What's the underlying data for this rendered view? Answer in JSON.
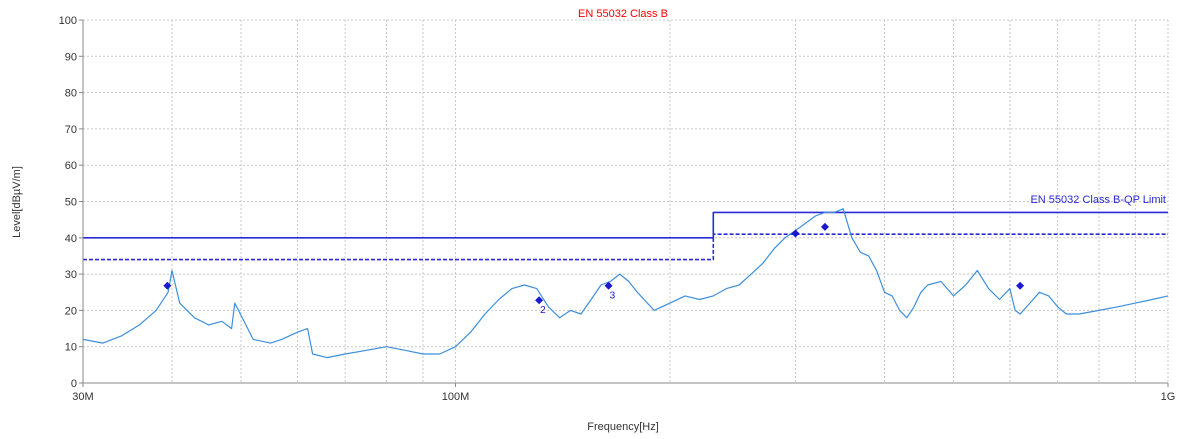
{
  "chart_data": {
    "type": "line",
    "title": "EN 55032 Class B",
    "xlabel": "Frequency[Hz]",
    "ylabel": "Level[dBµV/m]",
    "x_scale": "log",
    "xlim": [
      30000000,
      1000000000
    ],
    "ylim": [
      0,
      100
    ],
    "y_ticks": [
      0,
      10,
      20,
      30,
      40,
      50,
      60,
      70,
      80,
      90,
      100
    ],
    "y_tick_labels": [
      "0",
      "10",
      "20",
      "30",
      "40",
      "50",
      "60",
      "70",
      "80",
      "90",
      "100"
    ],
    "x_tick_labels": [
      {
        "value": 30000000,
        "label": "30M"
      },
      {
        "value": 100000000,
        "label": "100M"
      },
      {
        "value": 1000000000,
        "label": "1G"
      }
    ],
    "x_minor_grid": [
      40000000,
      50000000,
      60000000,
      70000000,
      80000000,
      90000000,
      200000000,
      300000000,
      400000000,
      500000000,
      600000000,
      700000000,
      800000000,
      900000000
    ],
    "grid": true,
    "legend": [
      {
        "label": "EN 55032 Class B-QP Limit",
        "color": "#2a2ad8"
      }
    ],
    "series": [
      {
        "kind": "limit",
        "color": "#2a2ad8",
        "style": "solid",
        "x": [
          30000000,
          230000000,
          230000000,
          1000000000
        ],
        "values": [
          40,
          40,
          47,
          47
        ]
      },
      {
        "kind": "limit",
        "color": "#2a2ad8",
        "style": "dashed",
        "x": [
          30000000,
          230000000,
          230000000,
          1000000000
        ],
        "values": [
          34,
          34,
          41,
          41
        ]
      },
      {
        "kind": "measurement",
        "color": "#3d8fdc",
        "x": [
          30000000,
          32000000,
          34000000,
          36000000,
          38000000,
          39500000,
          40000000,
          41000000,
          43000000,
          45000000,
          47000000,
          48500000,
          49000000,
          52000000,
          55000000,
          57000000,
          60000000,
          62000000,
          63000000,
          66000000,
          70000000,
          75000000,
          80000000,
          85000000,
          90000000,
          95000000,
          100000000,
          105000000,
          110000000,
          115000000,
          120000000,
          125000000,
          130000000,
          135000000,
          140000000,
          145000000,
          150000000,
          155000000,
          160000000,
          165000000,
          170000000,
          175000000,
          180000000,
          190000000,
          200000000,
          210000000,
          220000000,
          230000000,
          240000000,
          250000000,
          260000000,
          270000000,
          280000000,
          290000000,
          300000000,
          310000000,
          320000000,
          330000000,
          340000000,
          350000000,
          360000000,
          370000000,
          380000000,
          390000000,
          400000000,
          410000000,
          420000000,
          430000000,
          440000000,
          450000000,
          460000000,
          480000000,
          500000000,
          520000000,
          540000000,
          560000000,
          580000000,
          600000000,
          610000000,
          620000000,
          640000000,
          660000000,
          680000000,
          700000000,
          720000000,
          750000000,
          800000000,
          850000000,
          900000000,
          950000000,
          1000000000
        ],
        "values": [
          12,
          11,
          13,
          16,
          20,
          25,
          31,
          22,
          18,
          16,
          17,
          15,
          22,
          12,
          11,
          12,
          14,
          15,
          8,
          7,
          8,
          9,
          10,
          9,
          8,
          8,
          10,
          14,
          19,
          23,
          26,
          27,
          26,
          21,
          18,
          20,
          19,
          23,
          27,
          28,
          30,
          28,
          25,
          20,
          22,
          24,
          23,
          24,
          26,
          27,
          30,
          33,
          37,
          40,
          42,
          44,
          46,
          47,
          47,
          48,
          40,
          36,
          35,
          31,
          25,
          24,
          20,
          18,
          21,
          25,
          27,
          28,
          24,
          27,
          31,
          26,
          23,
          26,
          20,
          19,
          22,
          25,
          24,
          21,
          19,
          19,
          20,
          21,
          22,
          23,
          24
        ]
      }
    ],
    "markers": [
      {
        "x": 39400000,
        "value": 26.8,
        "label": ""
      },
      {
        "x": 131000000,
        "value": 22.8,
        "label": "2"
      },
      {
        "x": 164000000,
        "value": 26.8,
        "label": "3"
      },
      {
        "x": 300000000,
        "value": 41.2,
        "label": ""
      },
      {
        "x": 330000000,
        "value": 43.0,
        "label": ""
      },
      {
        "x": 620000000,
        "value": 26.8,
        "label": ""
      }
    ],
    "colors": {
      "title": "#ff0000",
      "limit": "#2a2ad8",
      "measurement": "#3d8fdc",
      "marker": "#1a1acc",
      "grid": "#c8c8c8",
      "axis": "#888888"
    }
  }
}
